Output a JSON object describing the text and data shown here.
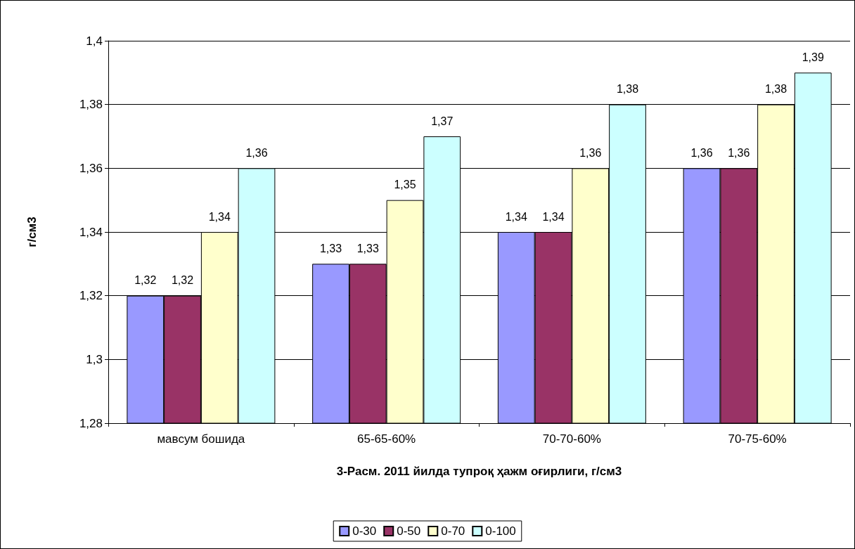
{
  "chart_data": {
    "type": "bar",
    "xlabel": "3-Расм. 2011 йилда тупроқ ҳажм оғирлиги, г/см3",
    "ylabel": "г/см3",
    "categories": [
      "мавсум бошида",
      "65-65-60%",
      "70-70-60%",
      "70-75-60%"
    ],
    "series": [
      {
        "name": "0-30",
        "color": "#9999ff",
        "values": [
          1.32,
          1.33,
          1.34,
          1.36
        ],
        "value_labels": [
          "1,32",
          "1,33",
          "1,34",
          "1,36"
        ]
      },
      {
        "name": "0-50",
        "color": "#993366",
        "values": [
          1.32,
          1.33,
          1.34,
          1.36
        ],
        "value_labels": [
          "1,32",
          "1,33",
          "1,34",
          "1,36"
        ]
      },
      {
        "name": "0-70",
        "color": "#ffffcc",
        "values": [
          1.34,
          1.35,
          1.36,
          1.38
        ],
        "value_labels": [
          "1,34",
          "1,35",
          "1,36",
          "1,38"
        ]
      },
      {
        "name": "0-100",
        "color": "#ccffff",
        "values": [
          1.36,
          1.37,
          1.38,
          1.39
        ],
        "value_labels": [
          "1,36",
          "1,37",
          "1,38",
          "1,39"
        ]
      }
    ],
    "ylim": [
      1.28,
      1.4
    ],
    "yticks": [
      {
        "value": 1.28,
        "label": "1,28"
      },
      {
        "value": 1.3,
        "label": "1,3"
      },
      {
        "value": 1.32,
        "label": "1,32"
      },
      {
        "value": 1.34,
        "label": "1,34"
      },
      {
        "value": 1.36,
        "label": "1,36"
      },
      {
        "value": 1.38,
        "label": "1,38"
      },
      {
        "value": 1.4,
        "label": "1,4"
      }
    ],
    "grid": "y",
    "legend": "bottom"
  }
}
